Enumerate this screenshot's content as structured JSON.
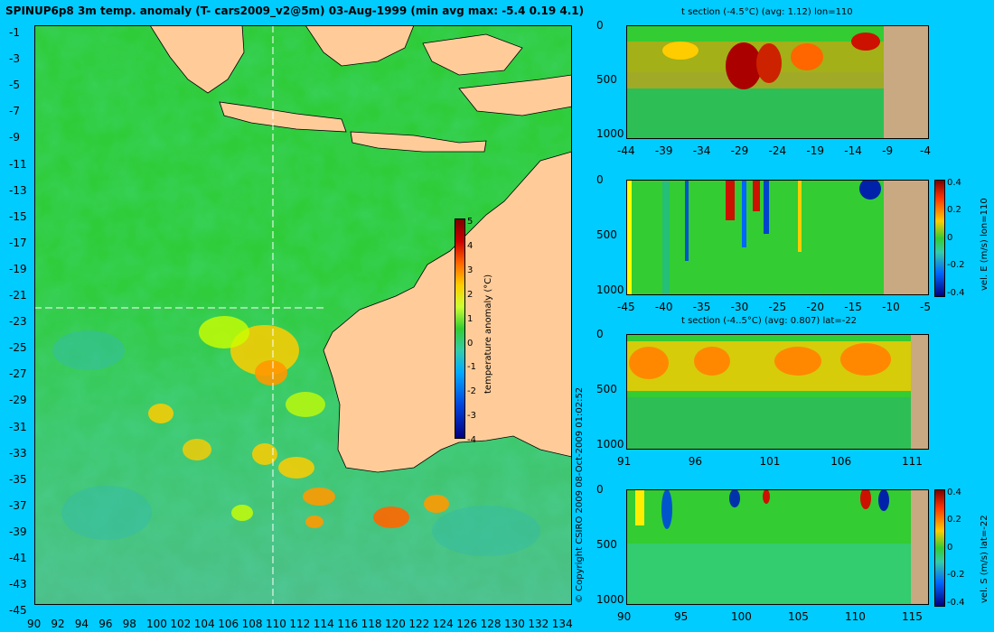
{
  "title": "SPINUP6p8 3m temp. anomaly (T- cars2009_v2@5m) 03-Aug-1999 (min avg max: -5.4 0.19 4.1)",
  "copyright": "© Copyright CSIRO 2009   08-Oct-2009 01:02:52",
  "main_map": {
    "lat_ticks": [
      "-1",
      "-3",
      "-5",
      "-7",
      "-9",
      "-11",
      "-13",
      "-15",
      "-17",
      "-19",
      "-21",
      "-23",
      "-25",
      "-27",
      "-29",
      "-31",
      "-33",
      "-35",
      "-37",
      "-39",
      "-41",
      "-43",
      "-45"
    ],
    "lon_ticks": [
      "90",
      "92",
      "94",
      "96",
      "98",
      "100",
      "102",
      "104",
      "106",
      "108",
      "110",
      "112",
      "114",
      "116",
      "118",
      "120",
      "122",
      "124",
      "126",
      "128",
      "130",
      "132",
      "134"
    ],
    "colorbar": {
      "label": "temperature anomaly (°C)",
      "ticks": [
        "5",
        "4",
        "3",
        "2",
        "1",
        "0",
        "-1",
        "-2",
        "-3",
        "-4"
      ]
    },
    "crosshair": {
      "lon": 110,
      "lat": -22
    }
  },
  "panels": [
    {
      "title": "t section (-4.5°C) (avg: 1.12) lon=110",
      "y_ticks": [
        "0",
        "500",
        "1000"
      ],
      "x_ticks": [
        "-44",
        "-39",
        "-34",
        "-29",
        "-24",
        "-19",
        "-14",
        "-9",
        "-4"
      ],
      "colorbar_label": ""
    },
    {
      "title": "",
      "y_ticks": [
        "0",
        "500",
        "1000"
      ],
      "x_ticks": [
        "-45",
        "-40",
        "-35",
        "-30",
        "-25",
        "-20",
        "-15",
        "-10",
        "-5"
      ],
      "colorbar_label": "vel. E (m/s) lon=110",
      "colorbar_ticks": [
        "0.4",
        "0.2",
        "0",
        "-0.2",
        "-0.4"
      ]
    },
    {
      "title": "t section (-4..5°C) (avg: 0.807) lat=-22",
      "y_ticks": [
        "0",
        "500",
        "1000"
      ],
      "x_ticks": [
        "91",
        "96",
        "101",
        "106",
        "111"
      ],
      "colorbar_label": ""
    },
    {
      "title": "",
      "y_ticks": [
        "0",
        "500",
        "1000"
      ],
      "x_ticks": [
        "90",
        "95",
        "100",
        "105",
        "110",
        "115"
      ],
      "colorbar_label": "vel. S (m/s) lat=-22",
      "colorbar_ticks": [
        "0.4",
        "0.2",
        "0",
        "-0.2",
        "-0.4"
      ]
    }
  ],
  "colors": {
    "background": "#00ccff",
    "land": "#ffcc99",
    "section_land": "#c8a982",
    "ocean_base": "#33cc33"
  }
}
